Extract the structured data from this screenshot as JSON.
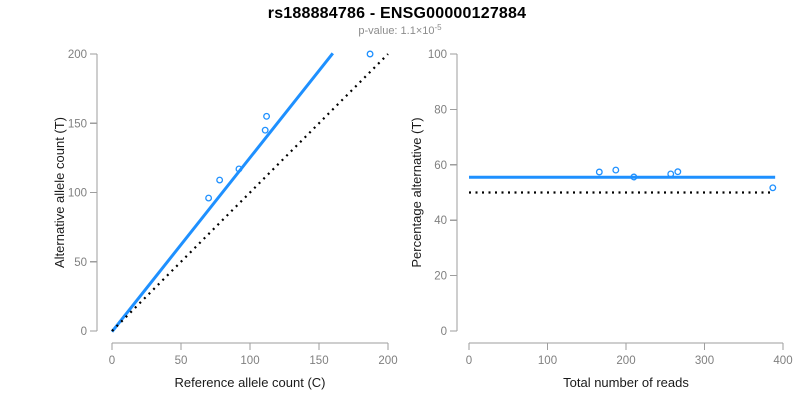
{
  "header": {
    "title": "rs188884786 - ENSG00000127884",
    "subtitle_text": "p-value: 1.1×10",
    "subtitle_exponent": "-5"
  },
  "colors": {
    "fit_line": "#1E90FF",
    "identity_line": "#000000",
    "axis": "#9E9E9E",
    "tick_label": "#7F7F7F",
    "axis_title": "#1A1A1A",
    "background": "#FFFFFF"
  },
  "chart_data": [
    {
      "id": "allele-count-scatter",
      "type": "scatter",
      "xlabel": "Reference allele count (C)",
      "ylabel": "Alternative allele count (T)",
      "xlim": [
        0,
        200
      ],
      "ylim": [
        0,
        200
      ],
      "xticks": [
        0,
        50,
        100,
        150,
        200
      ],
      "yticks": [
        0,
        50,
        100,
        150,
        200
      ],
      "grid": false,
      "legend": null,
      "points": [
        [
          70,
          96
        ],
        [
          78,
          109
        ],
        [
          92,
          117
        ],
        [
          111,
          145
        ],
        [
          112,
          155
        ],
        [
          187,
          200
        ]
      ],
      "lines": [
        {
          "name": "fit-line",
          "style": "solid",
          "color_key": "fit_line",
          "from": [
            0,
            -0.5
          ],
          "to": [
            160,
            200.5
          ]
        },
        {
          "name": "identity-line",
          "style": "dotted",
          "color_key": "identity_line",
          "from": [
            0,
            0
          ],
          "to": [
            200,
            200
          ]
        }
      ]
    },
    {
      "id": "percentage-scatter",
      "type": "scatter",
      "xlabel": "Total number of reads",
      "ylabel": "Percentage alternative (T)",
      "xlim": [
        0,
        400
      ],
      "ylim": [
        0,
        100
      ],
      "xticks": [
        0,
        100,
        200,
        300,
        400
      ],
      "yticks": [
        0,
        20,
        40,
        60,
        80,
        100
      ],
      "grid": false,
      "legend": null,
      "points": [
        [
          166,
          57.4
        ],
        [
          187,
          58.1
        ],
        [
          210,
          55.6
        ],
        [
          257,
          56.7
        ],
        [
          266,
          57.5
        ],
        [
          387,
          51.7
        ]
      ],
      "lines": [
        {
          "name": "fit-line",
          "style": "solid",
          "color_key": "fit_line",
          "from": [
            0,
            55.5
          ],
          "to": [
            390,
            55.5
          ]
        },
        {
          "name": "identity-line",
          "style": "dotted",
          "color_key": "identity_line",
          "from": [
            0,
            50
          ],
          "to": [
            385,
            50
          ]
        }
      ]
    }
  ]
}
